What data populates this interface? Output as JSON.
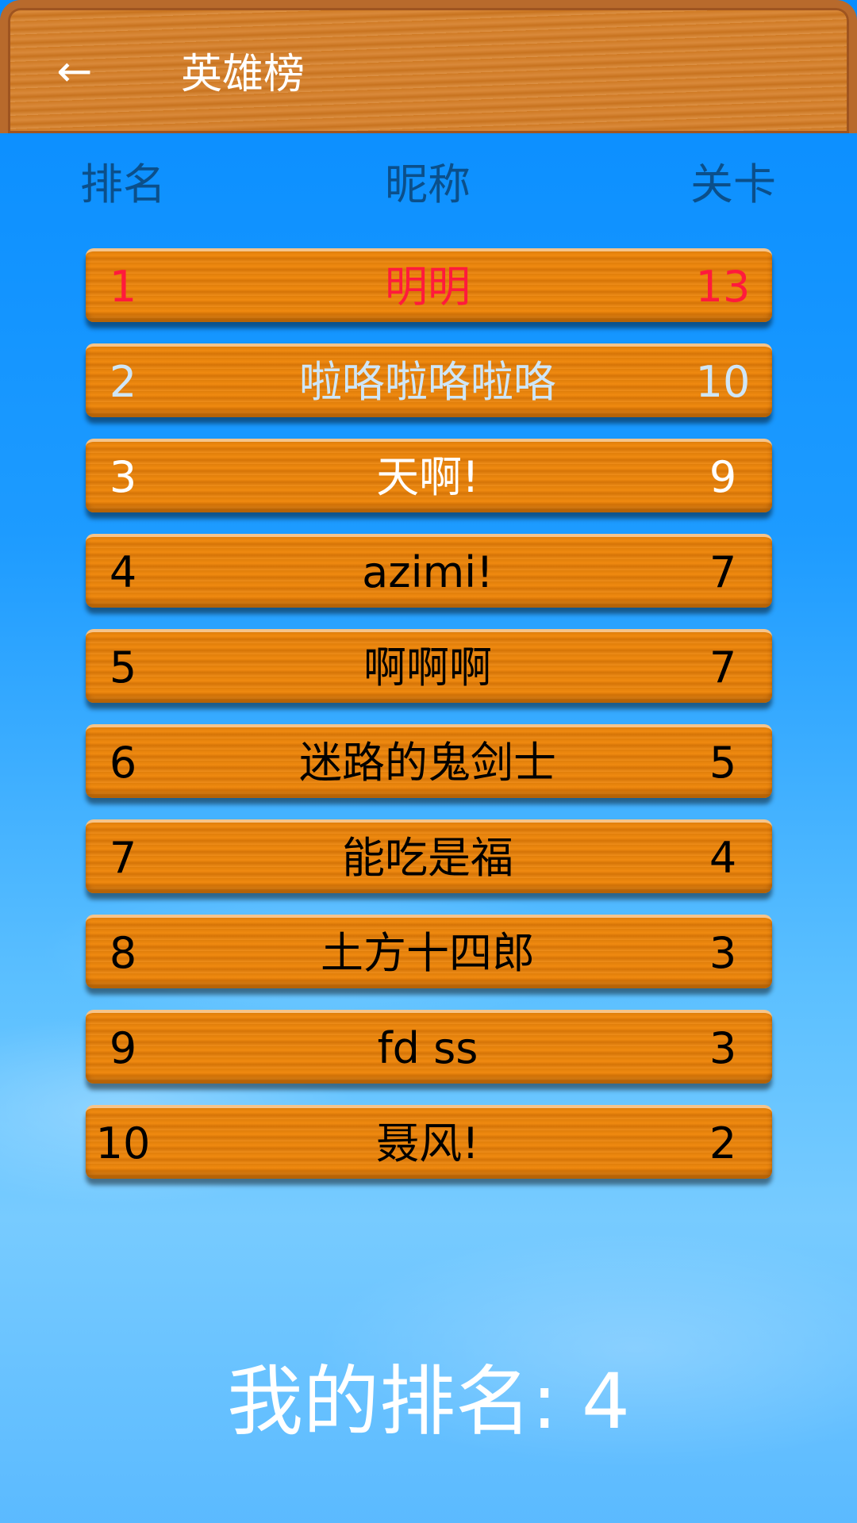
{
  "header": {
    "title": "英雄榜",
    "back_icon": "arrow-left-icon"
  },
  "columns": {
    "rank": "排名",
    "nickname": "昵称",
    "level": "关卡"
  },
  "rows": [
    {
      "rank": "1",
      "name": "明明",
      "level": "13",
      "color": "#ff1a3c"
    },
    {
      "rank": "2",
      "name": "啦咯啦咯啦咯",
      "level": "10",
      "color": "#cfe6f7"
    },
    {
      "rank": "3",
      "name": "天啊!",
      "level": "9",
      "color": "#ffffff"
    },
    {
      "rank": "4",
      "name": "azimi!",
      "level": "7",
      "color": "#000000"
    },
    {
      "rank": "5",
      "name": "啊啊啊",
      "level": "7",
      "color": "#000000"
    },
    {
      "rank": "6",
      "name": "迷路的鬼剑士",
      "level": "5",
      "color": "#000000"
    },
    {
      "rank": "7",
      "name": "能吃是福",
      "level": "4",
      "color": "#000000"
    },
    {
      "rank": "8",
      "name": "土方十四郎",
      "level": "3",
      "color": "#000000"
    },
    {
      "rank": "9",
      "name": "fd ss",
      "level": "3",
      "color": "#000000"
    },
    {
      "rank": "10",
      "name": "聂风!",
      "level": "2",
      "color": "#000000"
    }
  ],
  "my_rank": "我的排名: 4"
}
